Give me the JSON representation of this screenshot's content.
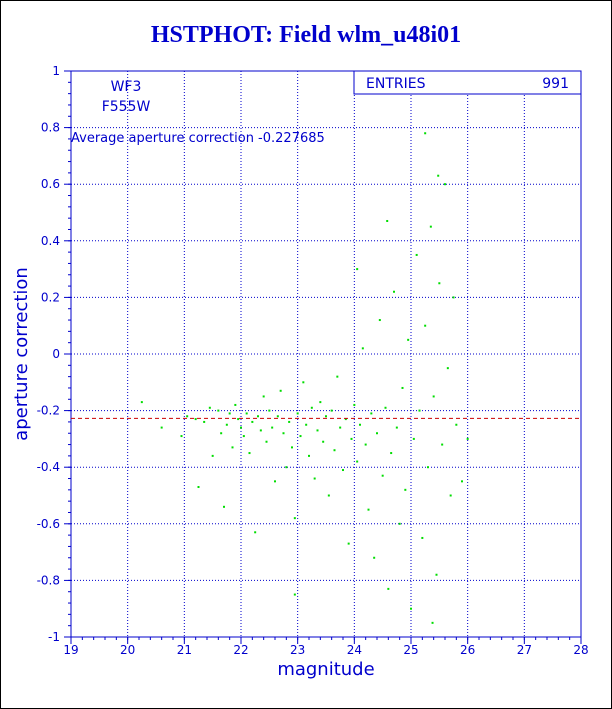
{
  "chart_data": {
    "type": "scatter",
    "title": "HSTPHOT: Field wlm_u48i01",
    "xlabel": "magnitude",
    "ylabel": "aperture correction",
    "xlim": [
      19,
      28
    ],
    "ylim": [
      -1,
      1
    ],
    "x_ticks": [
      "19",
      "20",
      "21",
      "22",
      "23",
      "24",
      "25",
      "26",
      "27",
      "28"
    ],
    "y_ticks": [
      "-1",
      "-0.8",
      "-0.6",
      "-0.4",
      "-0.2",
      "0",
      "0.2",
      "0.4",
      "0.6",
      "0.8",
      "1"
    ],
    "grid": true,
    "text_labels": {
      "chip": "WF3",
      "filter": "F555W",
      "average_label": "Average aperture correction -0.227685"
    },
    "stats_box": {
      "label": "ENTRIES",
      "value": "991"
    },
    "reference_line": {
      "y": -0.227685
    },
    "point_color": "#00dd00",
    "line_color": "#cc0000",
    "axis_color": "#0000cc",
    "series": [
      {
        "points": [
          [
            20.25,
            -0.17
          ],
          [
            20.6,
            -0.26
          ],
          [
            20.95,
            -0.29
          ],
          [
            21.05,
            -0.22
          ],
          [
            21.2,
            -0.23
          ],
          [
            21.35,
            -0.24
          ],
          [
            21.45,
            -0.19
          ],
          [
            21.5,
            -0.36
          ],
          [
            21.6,
            -0.2
          ],
          [
            21.65,
            -0.28
          ],
          [
            21.7,
            -0.54
          ],
          [
            21.75,
            -0.25
          ],
          [
            21.8,
            -0.21
          ],
          [
            21.85,
            -0.33
          ],
          [
            21.9,
            -0.18
          ],
          [
            21.95,
            -0.23
          ],
          [
            22.0,
            -0.26
          ],
          [
            22.05,
            -0.29
          ],
          [
            22.1,
            -0.21
          ],
          [
            22.15,
            -0.35
          ],
          [
            22.2,
            -0.24
          ],
          [
            22.25,
            -0.63
          ],
          [
            22.3,
            -0.22
          ],
          [
            22.35,
            -0.27
          ],
          [
            22.4,
            -0.15
          ],
          [
            22.45,
            -0.31
          ],
          [
            22.5,
            -0.2
          ],
          [
            22.55,
            -0.26
          ],
          [
            22.6,
            -0.45
          ],
          [
            22.65,
            -0.22
          ],
          [
            22.7,
            -0.13
          ],
          [
            22.75,
            -0.28
          ],
          [
            22.8,
            -0.4
          ],
          [
            22.85,
            -0.24
          ],
          [
            22.9,
            -0.33
          ],
          [
            22.95,
            -0.58
          ],
          [
            23.0,
            -0.21
          ],
          [
            23.05,
            -0.29
          ],
          [
            23.1,
            -0.1
          ],
          [
            23.15,
            -0.25
          ],
          [
            23.2,
            -0.36
          ],
          [
            23.25,
            -0.19
          ],
          [
            23.3,
            -0.44
          ],
          [
            23.35,
            -0.27
          ],
          [
            23.4,
            -0.17
          ],
          [
            23.45,
            -0.31
          ],
          [
            23.5,
            -0.22
          ],
          [
            23.55,
            -0.5
          ],
          [
            23.6,
            -0.2
          ],
          [
            23.65,
            -0.34
          ],
          [
            23.7,
            -0.08
          ],
          [
            23.75,
            -0.26
          ],
          [
            23.8,
            -0.41
          ],
          [
            23.85,
            -0.23
          ],
          [
            23.9,
            -0.67
          ],
          [
            23.95,
            -0.3
          ],
          [
            24.0,
            -0.18
          ],
          [
            24.05,
            -0.38
          ],
          [
            24.1,
            -0.25
          ],
          [
            24.15,
            0.02
          ],
          [
            24.2,
            -0.32
          ],
          [
            24.25,
            -0.55
          ],
          [
            24.3,
            -0.21
          ],
          [
            24.35,
            -0.72
          ],
          [
            24.4,
            -0.28
          ],
          [
            24.45,
            0.12
          ],
          [
            24.5,
            -0.43
          ],
          [
            24.55,
            -0.19
          ],
          [
            24.6,
            -0.83
          ],
          [
            24.65,
            -0.35
          ],
          [
            24.7,
            0.22
          ],
          [
            24.75,
            -0.26
          ],
          [
            24.8,
            -0.6
          ],
          [
            24.85,
            -0.12
          ],
          [
            24.9,
            -0.48
          ],
          [
            24.95,
            0.05
          ],
          [
            25.0,
            -0.9
          ],
          [
            25.05,
            -0.3
          ],
          [
            25.1,
            0.35
          ],
          [
            25.15,
            -0.2
          ],
          [
            25.2,
            -0.65
          ],
          [
            25.25,
            0.1
          ],
          [
            25.3,
            -0.4
          ],
          [
            25.35,
            0.45
          ],
          [
            25.4,
            -0.15
          ],
          [
            25.45,
            -0.78
          ],
          [
            25.5,
            0.25
          ],
          [
            25.55,
            -0.32
          ],
          [
            25.6,
            0.6
          ],
          [
            25.65,
            -0.05
          ],
          [
            25.7,
            -0.5
          ],
          [
            25.75,
            0.2
          ],
          [
            25.8,
            -0.25
          ],
          [
            25.9,
            -0.45
          ],
          [
            26.0,
            -0.3
          ],
          [
            25.25,
            0.78
          ],
          [
            25.48,
            0.63
          ],
          [
            24.58,
            0.47
          ],
          [
            25.38,
            -0.95
          ],
          [
            24.05,
            0.3
          ],
          [
            21.25,
            -0.47
          ],
          [
            22.95,
            -0.85
          ]
        ]
      }
    ]
  }
}
